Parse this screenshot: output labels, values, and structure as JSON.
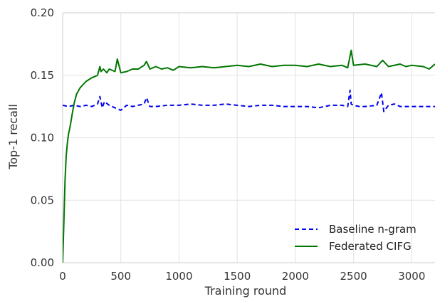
{
  "chart_data": {
    "type": "line",
    "xlabel": "Training round",
    "ylabel": "Top-1 recall",
    "xlim": [
      0,
      3200
    ],
    "ylim": [
      0,
      0.2
    ],
    "x_ticks": [
      0,
      500,
      1000,
      1500,
      2000,
      2500,
      3000
    ],
    "y_ticks": [
      0.0,
      0.05,
      0.1,
      0.15,
      0.2
    ],
    "x_tick_labels": [
      "0",
      "500",
      "1000",
      "1500",
      "2000",
      "2500",
      "3000"
    ],
    "y_tick_labels": [
      "0.00",
      "0.05",
      "0.10",
      "0.15",
      "0.20"
    ],
    "grid": true,
    "legend_position": "bottom-right",
    "series": [
      {
        "name": "Baseline n-gram",
        "color": "#0000ee",
        "style": "dashed",
        "x": [
          0,
          50,
          100,
          150,
          200,
          250,
          300,
          320,
          340,
          360,
          400,
          450,
          500,
          550,
          600,
          650,
          700,
          720,
          750,
          800,
          900,
          1000,
          1100,
          1200,
          1300,
          1400,
          1500,
          1600,
          1700,
          1800,
          1900,
          2000,
          2100,
          2200,
          2300,
          2400,
          2450,
          2470,
          2480,
          2500,
          2550,
          2600,
          2700,
          2740,
          2760,
          2800,
          2850,
          2900,
          3000,
          3100,
          3200
        ],
        "y": [
          0.126,
          0.125,
          0.126,
          0.125,
          0.126,
          0.125,
          0.127,
          0.133,
          0.124,
          0.129,
          0.126,
          0.124,
          0.122,
          0.126,
          0.125,
          0.126,
          0.127,
          0.132,
          0.125,
          0.125,
          0.126,
          0.126,
          0.127,
          0.126,
          0.126,
          0.127,
          0.126,
          0.125,
          0.126,
          0.126,
          0.125,
          0.125,
          0.125,
          0.124,
          0.126,
          0.126,
          0.125,
          0.138,
          0.127,
          0.126,
          0.125,
          0.125,
          0.126,
          0.136,
          0.121,
          0.126,
          0.127,
          0.125,
          0.125,
          0.125,
          0.125
        ]
      },
      {
        "name": "Federated CIFG",
        "color": "#007700",
        "style": "solid",
        "x": [
          0,
          10,
          20,
          30,
          40,
          50,
          60,
          70,
          80,
          100,
          120,
          150,
          180,
          200,
          250,
          300,
          320,
          330,
          350,
          380,
          400,
          450,
          470,
          500,
          550,
          600,
          650,
          700,
          720,
          750,
          800,
          850,
          900,
          950,
          1000,
          1100,
          1200,
          1300,
          1400,
          1500,
          1600,
          1700,
          1800,
          1900,
          2000,
          2100,
          2200,
          2300,
          2400,
          2450,
          2480,
          2500,
          2600,
          2700,
          2750,
          2800,
          2900,
          2950,
          3000,
          3100,
          3150,
          3200
        ],
        "y": [
          0.0,
          0.03,
          0.065,
          0.085,
          0.095,
          0.103,
          0.107,
          0.112,
          0.118,
          0.128,
          0.135,
          0.14,
          0.143,
          0.145,
          0.148,
          0.15,
          0.157,
          0.153,
          0.155,
          0.152,
          0.155,
          0.153,
          0.163,
          0.152,
          0.153,
          0.155,
          0.155,
          0.158,
          0.161,
          0.155,
          0.157,
          0.155,
          0.156,
          0.154,
          0.157,
          0.156,
          0.157,
          0.156,
          0.157,
          0.158,
          0.157,
          0.159,
          0.157,
          0.158,
          0.158,
          0.157,
          0.159,
          0.157,
          0.158,
          0.156,
          0.17,
          0.158,
          0.159,
          0.157,
          0.162,
          0.157,
          0.159,
          0.157,
          0.158,
          0.157,
          0.155,
          0.159
        ]
      }
    ]
  }
}
